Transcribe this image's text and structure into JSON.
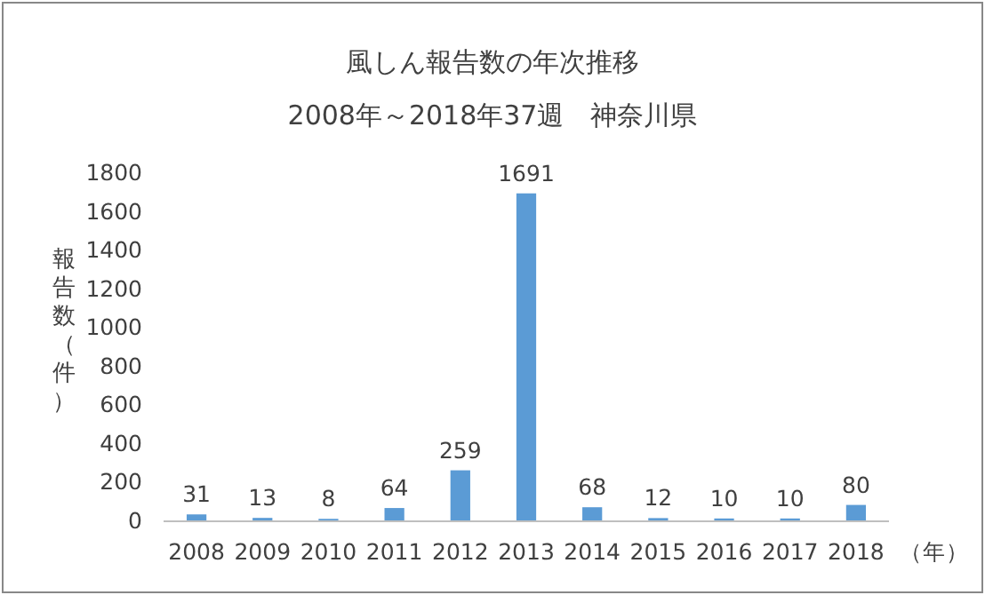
{
  "chart_data": {
    "type": "bar",
    "title": "風しん報告数の年次推移",
    "subtitle": "2008年～2018年37週　神奈川県",
    "ylabel": "報告数（件）",
    "xlabel": "（年）",
    "categories": [
      "2008",
      "2009",
      "2010",
      "2011",
      "2012",
      "2013",
      "2014",
      "2015",
      "2016",
      "2017",
      "2018"
    ],
    "values": [
      31,
      13,
      8,
      64,
      259,
      1691,
      68,
      12,
      10,
      10,
      80
    ],
    "color": "#5b9bd5",
    "ylim": [
      0,
      1800
    ],
    "yticks": [
      0,
      200,
      400,
      600,
      800,
      1000,
      1200,
      1400,
      1600,
      1800
    ],
    "data_labels": true
  }
}
